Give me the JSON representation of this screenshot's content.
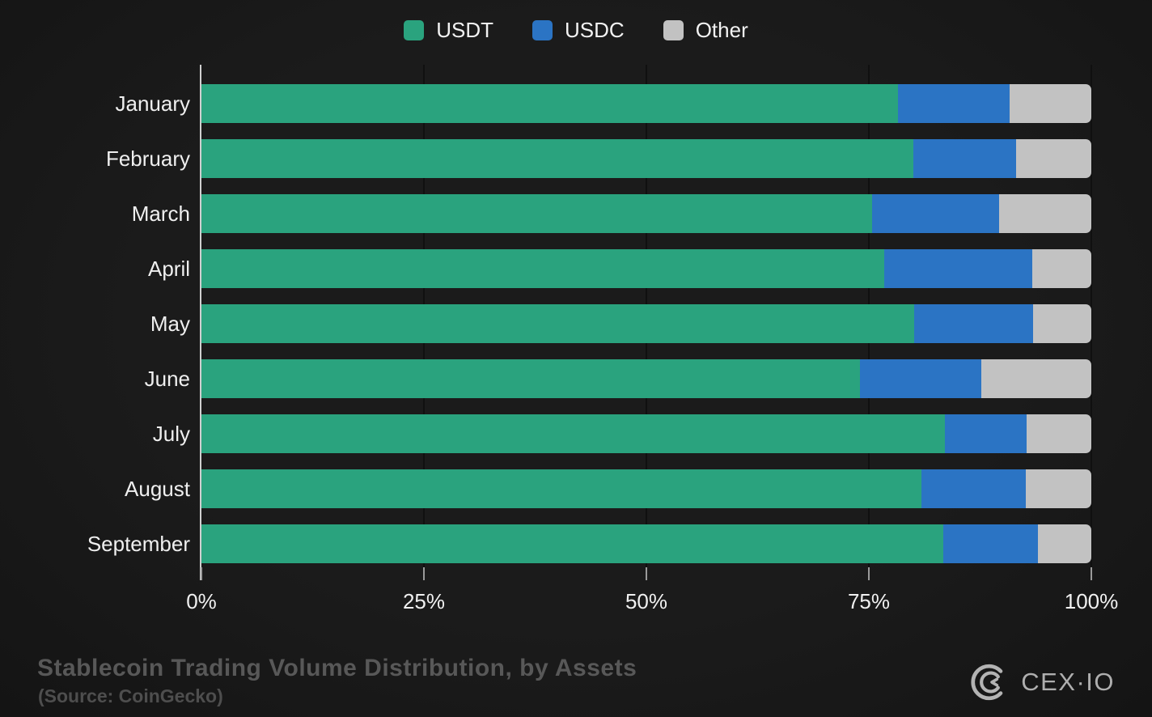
{
  "colors": {
    "usdt": "#2aa37e",
    "usdc": "#2b74c4",
    "other": "#c2c2c2",
    "background": "#181818",
    "axis_line": "#cfcfcf",
    "gridline": "#101010",
    "tick_text": "#f0f0f0",
    "title_text": "#585858"
  },
  "legend": {
    "items": [
      {
        "label": "USDT",
        "color": "#2aa37e"
      },
      {
        "label": "USDC",
        "color": "#2b74c4"
      },
      {
        "label": "Other",
        "color": "#c2c2c2"
      }
    ]
  },
  "chart_data": {
    "type": "bar",
    "orientation": "horizontal",
    "stacked": true,
    "unit": "%",
    "title": "Stablecoin Trading Volume Distribution, by Assets",
    "xlabel": "",
    "ylabel": "",
    "xlim": [
      0,
      100
    ],
    "grid": true,
    "legend_position": "top-center",
    "categories": [
      "January",
      "February",
      "March",
      "April",
      "May",
      "June",
      "July",
      "August",
      "September"
    ],
    "series": [
      {
        "name": "USDT",
        "color": "#2aa37e",
        "values": [
          78.3,
          80.0,
          75.4,
          76.7,
          80.1,
          74.0,
          83.5,
          80.9,
          83.4
        ]
      },
      {
        "name": "USDC",
        "color": "#2b74c4",
        "values": [
          12.5,
          11.5,
          14.2,
          16.7,
          13.4,
          13.6,
          9.2,
          11.7,
          10.6
        ]
      },
      {
        "name": "Other",
        "color": "#c2c2c2",
        "values": [
          9.2,
          8.5,
          10.4,
          6.6,
          6.5,
          12.4,
          7.3,
          7.4,
          6.0
        ]
      }
    ],
    "x_ticks": [
      {
        "label": "0%",
        "value": 0
      },
      {
        "label": "25%",
        "value": 25
      },
      {
        "label": "50%",
        "value": 50
      },
      {
        "label": "75%",
        "value": 75
      },
      {
        "label": "100%",
        "value": 100
      }
    ]
  },
  "footer": {
    "title": "Stablecoin Trading Volume Distribution, by Assets",
    "source": "(Source: CoinGecko)",
    "brand": "CEX·IO"
  }
}
